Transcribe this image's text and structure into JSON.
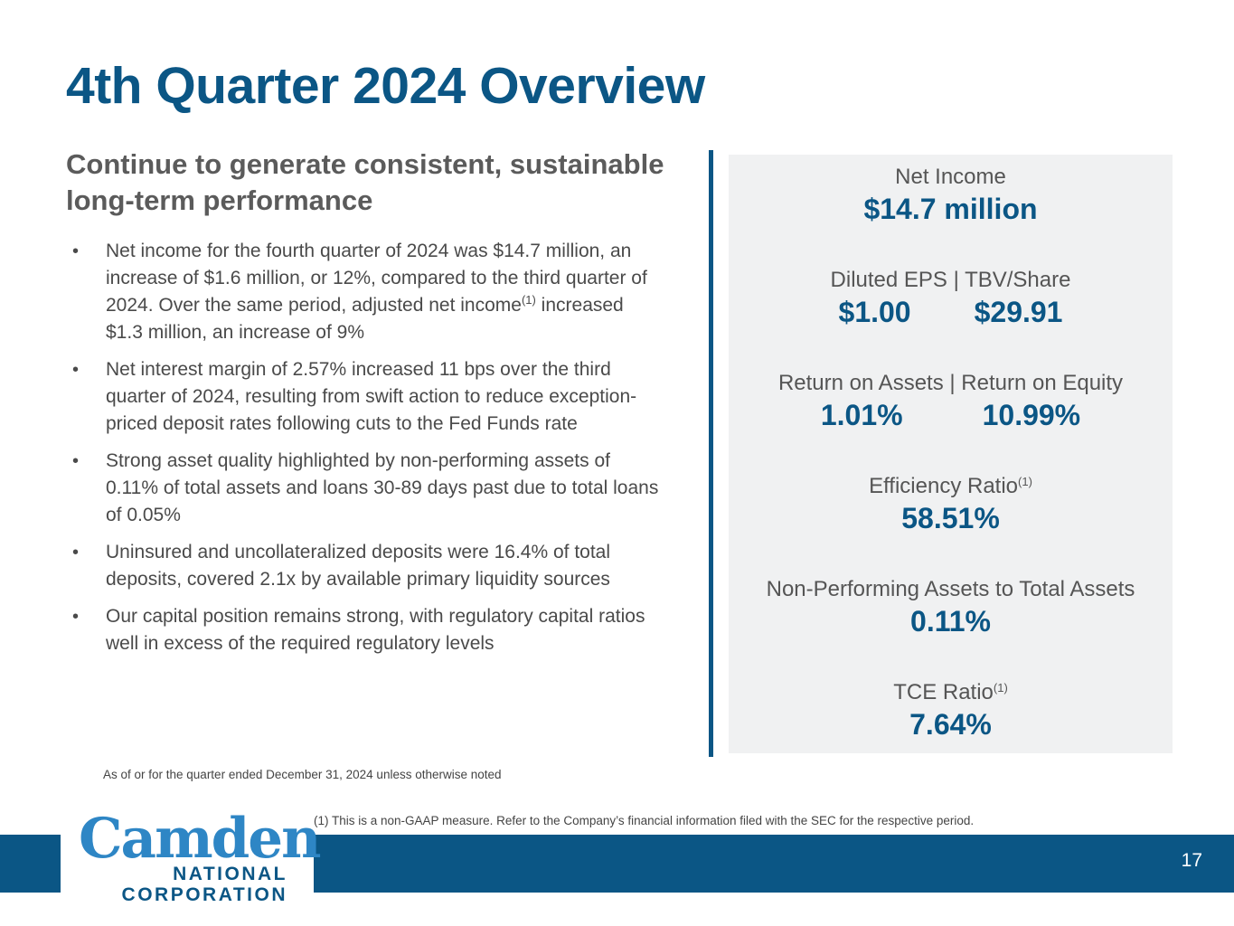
{
  "slide": {
    "title": "4th Quarter 2024 Overview",
    "subtitle": "Continue to generate consistent, sustainable long-term performance",
    "bullet_symbol": "•",
    "bullets": [
      {
        "before": "Net income for the fourth quarter of 2024 was $14.7 million, an increase of $1.6 million, or 12%, compared to the third quarter of 2024. Over the same period, adjusted net income",
        "sup": "(1)",
        "after": " increased $1.3 million, an increase of 9%"
      },
      {
        "text": "Net interest margin of 2.57% increased 11 bps over the third quarter of 2024, resulting from swift action to reduce exception-priced deposit rates following cuts to the Fed Funds rate"
      },
      {
        "text": "Strong asset quality highlighted by non-performing assets of 0.11% of total assets and loans 30-89 days past due to total loans of 0.05%"
      },
      {
        "text": "Uninsured and uncollateralized deposits were 16.4% of total deposits, covered 2.1x by available primary liquidity sources"
      },
      {
        "text": "Our capital position remains strong, with regulatory capital ratios well in excess of the required regulatory levels"
      }
    ],
    "as_of_note": "As of or for the quarter ended December 31, 2024 unless otherwise noted",
    "footnote": "(1) This is a non-GAAP measure. Refer to the Company’s financial information filed with the SEC for the respective period.",
    "page_number": "17"
  },
  "metrics": {
    "net_income": {
      "label": "Net Income",
      "value": "$14.7 million"
    },
    "eps_tbv": {
      "label": "Diluted EPS | TBV/Share",
      "value1": "$1.00",
      "value2": "$29.91"
    },
    "roa_roe": {
      "label": "Return on Assets | Return on Equity",
      "value1": "1.01%",
      "value2": "10.99%"
    },
    "efficiency": {
      "label": "Efficiency Ratio",
      "sup": "(1)",
      "value": "58.51%"
    },
    "npa": {
      "label": "Non-Performing Assets to Total Assets",
      "value": "0.11%"
    },
    "tce": {
      "label": "TCE Ratio",
      "sup": "(1)",
      "value": "7.64%"
    }
  },
  "logo": {
    "word": "Camden",
    "line1": "NATIONAL",
    "line2": "CORPORATION"
  },
  "colors": {
    "brand_blue": "#0b5685",
    "logo_blue": "#2e86c5",
    "panel_bg": "#f0f1f2"
  }
}
